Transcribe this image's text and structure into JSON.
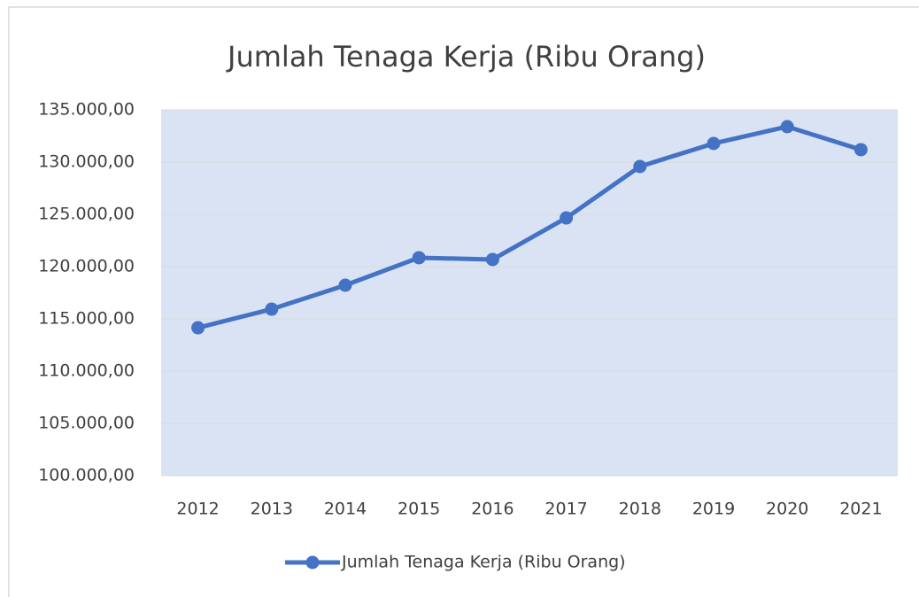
{
  "chart_data": {
    "type": "line",
    "title": "Jumlah Tenaga Kerja (Ribu Orang)",
    "categories": [
      "2012",
      "2013",
      "2014",
      "2015",
      "2016",
      "2017",
      "2018",
      "2019",
      "2020",
      "2021"
    ],
    "series": [
      {
        "name": "Jumlah Tenaga Kerja (Ribu Orang)",
        "color": "#4472c4",
        "values": [
          114150,
          115930,
          118220,
          120850,
          120680,
          124660,
          129580,
          131780,
          133390,
          131190
        ]
      }
    ],
    "ylim": [
      100000,
      135000
    ],
    "yticks": [
      {
        "value": 100000,
        "label": "100.000,00"
      },
      {
        "value": 105000,
        "label": "105.000,00"
      },
      {
        "value": 110000,
        "label": "110.000,00"
      },
      {
        "value": 115000,
        "label": "115.000,00"
      },
      {
        "value": 120000,
        "label": "120.000,00"
      },
      {
        "value": 125000,
        "label": "125.000,00"
      },
      {
        "value": 130000,
        "label": "130.000,00"
      },
      {
        "value": 135000,
        "label": "135.000,00"
      }
    ],
    "grid": true,
    "legend": "bottom",
    "plot_background": "#dae3f3"
  }
}
